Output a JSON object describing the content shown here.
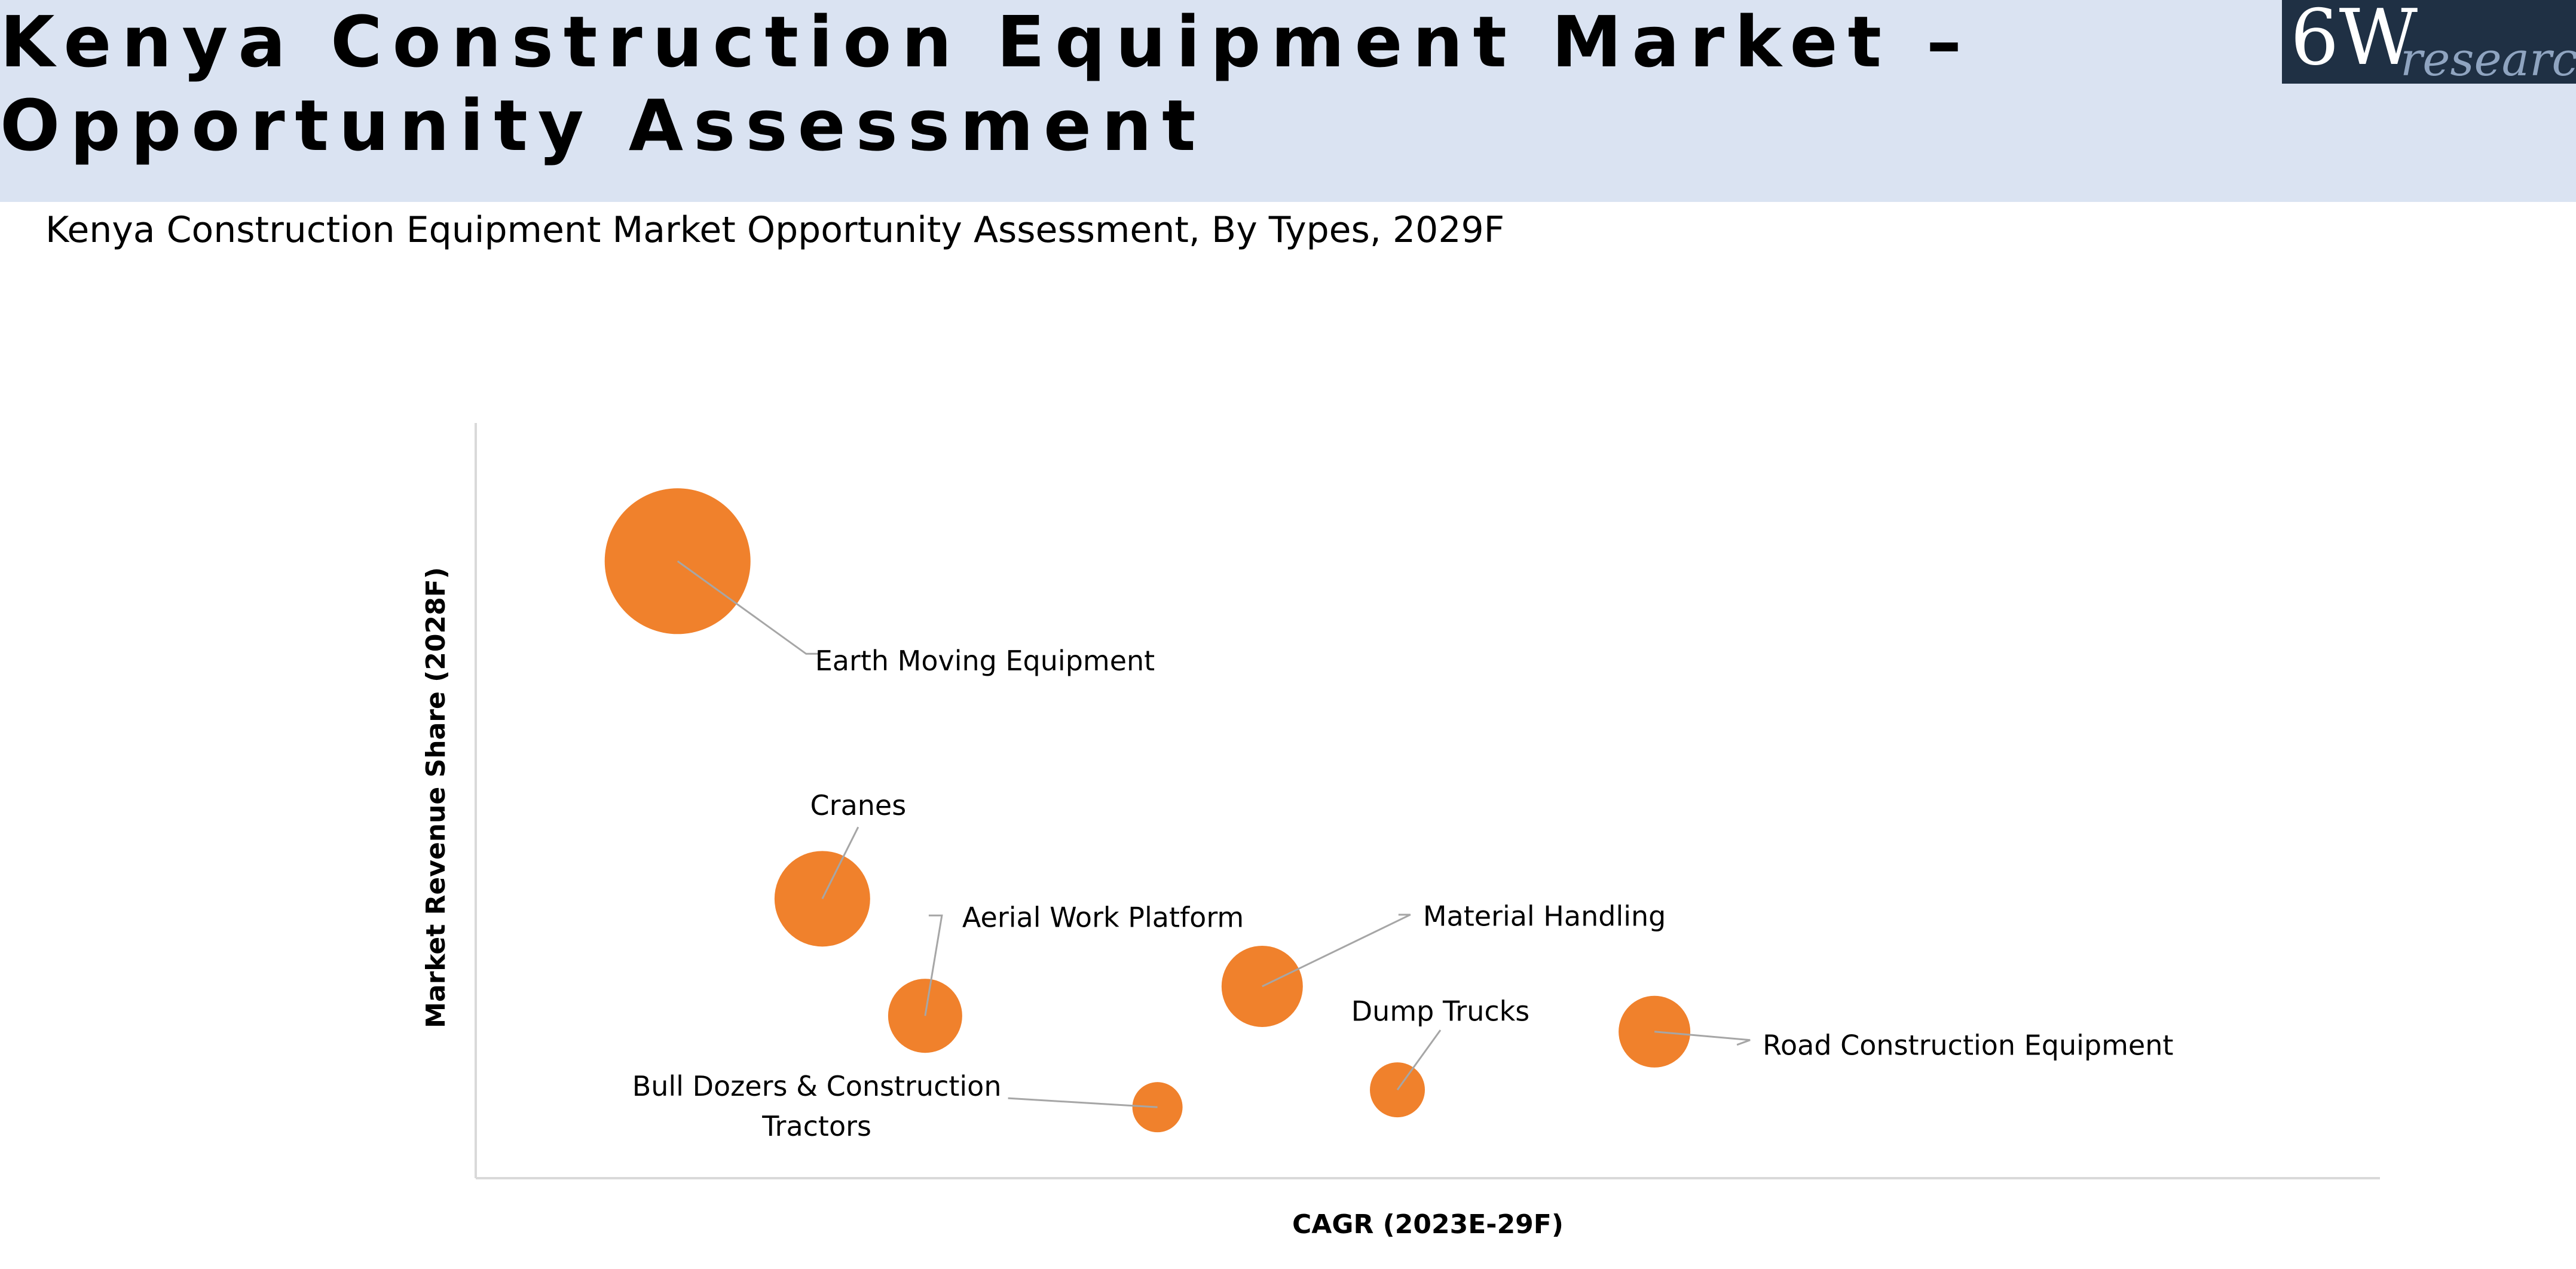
{
  "header": {
    "title": "Kenya Construction Equipment Market – Opportunity Assessment",
    "logo_main": "6W",
    "logo_sub": "research"
  },
  "chart_data": {
    "type": "bubble",
    "title": "Kenya Construction Equipment Market Opportunity Assessment, By Types, 2029F",
    "xlabel": "CAGR (2023E-29F)",
    "ylabel": "Market Revenue Share (2028F)",
    "xlim": [
      0,
      100
    ],
    "ylim": [
      0,
      100
    ],
    "grid": false,
    "points": [
      {
        "name": "Earth Moving Equipment",
        "x": 10.6,
        "y": 81.7,
        "size": 122
      },
      {
        "name": "Cranes",
        "x": 18.2,
        "y": 37.0,
        "size": 80
      },
      {
        "name": "Aerial Work Platform",
        "x": 23.6,
        "y": 21.5,
        "size": 62
      },
      {
        "name": "Material Handling",
        "x": 41.3,
        "y": 25.4,
        "size": 68
      },
      {
        "name": "Road Construction Equipment",
        "x": 61.9,
        "y": 19.4,
        "size": 60
      },
      {
        "name": "Dump Trucks",
        "x": 48.4,
        "y": 11.7,
        "size": 46
      },
      {
        "name": "Bull Dozers & Construction Tractors",
        "x": 35.8,
        "y": 9.4,
        "size": 42,
        "label_lines": [
          "Bull Dozers & Construction",
          "Tractors"
        ]
      }
    ]
  },
  "colors": {
    "bubble": "#f0812c",
    "header_band": "#dae3f2",
    "logo_bg": "#1f3044"
  }
}
